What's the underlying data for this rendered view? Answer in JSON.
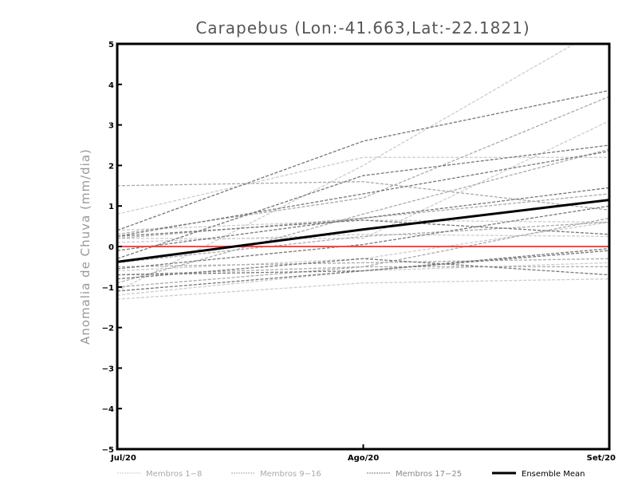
{
  "chart_data": {
    "type": "line",
    "title": "Carapebus (Lon:-41.663,Lat:-22.1821)",
    "xlabel": "",
    "ylabel": "Anomalia de Chuva (mm/dia)",
    "categories": [
      "Jul/20",
      "Ago/20",
      "Set/20"
    ],
    "ylim": [
      -5,
      5
    ],
    "yticks": [
      "-5",
      "-4",
      "-3",
      "-2",
      "-1",
      "0",
      "1",
      "2",
      "3",
      "4",
      "5"
    ],
    "reference_line": {
      "value": 0,
      "color": "#ff4444"
    },
    "legend_position": "bottom",
    "groups": [
      {
        "name": "Membros 1-8",
        "color": "#cccccc",
        "members": [
          [
            -1.1,
            2.0,
            5.5
          ],
          [
            0.8,
            2.2,
            2.2
          ],
          [
            -1.3,
            -0.9,
            -0.8
          ],
          [
            0.2,
            0.2,
            3.1
          ],
          [
            0.1,
            0.3,
            0.25
          ],
          [
            -0.6,
            -0.3,
            0.6
          ],
          [
            -1.2,
            -0.6,
            -0.4
          ],
          [
            0.4,
            0.65,
            0.6
          ]
        ]
      },
      {
        "name": "Membros 9-16",
        "color": "#aaaaaa",
        "members": [
          [
            0.3,
            1.2,
            3.7
          ],
          [
            -0.9,
            0.8,
            2.4
          ],
          [
            -0.5,
            -0.4,
            -0.3
          ],
          [
            -0.7,
            -0.5,
            0.7
          ],
          [
            0.2,
            0.7,
            1.3
          ],
          [
            -1.0,
            -0.5,
            -0.5
          ],
          [
            1.5,
            1.6,
            0.9
          ],
          [
            -0.4,
            0.25,
            0.6
          ]
        ]
      },
      {
        "name": "Membros 17-25",
        "color": "#777777",
        "members": [
          [
            0.4,
            2.6,
            3.85
          ],
          [
            -0.3,
            1.75,
            2.5
          ],
          [
            0.25,
            1.3,
            2.35
          ],
          [
            -0.1,
            0.7,
            1.45
          ],
          [
            -0.7,
            -0.6,
            -0.1
          ],
          [
            -1.1,
            -0.6,
            -0.05
          ],
          [
            -0.8,
            -0.3,
            -0.7
          ],
          [
            0.25,
            0.65,
            0.3
          ],
          [
            -0.55,
            0.05,
            1.0
          ]
        ]
      }
    ],
    "ensemble_mean": {
      "name": "Ensemble Mean",
      "color": "#000000",
      "values": [
        -0.38,
        0.42,
        1.15
      ]
    }
  }
}
